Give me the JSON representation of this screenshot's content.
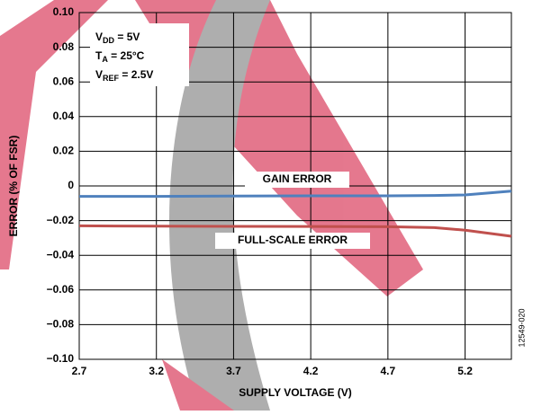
{
  "chart_data": {
    "type": "line",
    "x": [
      2.7,
      3.2,
      3.7,
      4.2,
      4.7,
      5.0,
      5.2,
      5.5
    ],
    "series": [
      {
        "name": "GAIN ERROR",
        "color": "#4f81bd",
        "values": [
          -0.006,
          -0.006,
          -0.0058,
          -0.0057,
          -0.0057,
          -0.0055,
          -0.0052,
          -0.003
        ]
      },
      {
        "name": "FULL-SCALE ERROR",
        "color": "#c0504d",
        "values": [
          -0.023,
          -0.0232,
          -0.0233,
          -0.0234,
          -0.0235,
          -0.024,
          -0.0255,
          -0.029
        ]
      }
    ],
    "xlabel": "SUPPLY VOLTAGE (V)",
    "ylabel": "ERROR (% OF FSR)",
    "xlim": [
      2.7,
      5.5
    ],
    "xticks": [
      2.7,
      3.2,
      3.7,
      4.2,
      4.7,
      5.2
    ],
    "ylim": [
      -0.1,
      0.1
    ],
    "yticks": [
      {
        "value": -0.1,
        "label": "−0.10"
      },
      {
        "value": -0.08,
        "label": "−0.08"
      },
      {
        "value": -0.06,
        "label": "−0.06"
      },
      {
        "value": -0.04,
        "label": "−0.04"
      },
      {
        "value": -0.02,
        "label": "−0.02"
      },
      0,
      0.02,
      0.04,
      0.06,
      0.08,
      {
        "value": 0.1,
        "label": "0.10"
      }
    ],
    "grid": true,
    "conditions": [
      {
        "symbol": "V",
        "sub": "DD",
        "rest": " = 5V"
      },
      {
        "symbol": "T",
        "sub": "A",
        "rest": " = 25°C"
      },
      {
        "symbol": "V",
        "sub": "REF",
        "rest": " = 2.5V"
      }
    ],
    "figure_id": "12549-020"
  }
}
